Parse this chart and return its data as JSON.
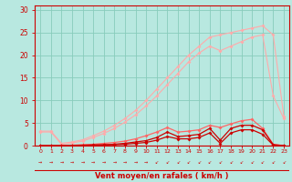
{
  "bg_color": "#b8e8e0",
  "grid_color": "#88ccbb",
  "x_values": [
    0,
    1,
    2,
    3,
    4,
    5,
    6,
    7,
    8,
    9,
    10,
    11,
    12,
    13,
    14,
    15,
    16,
    17,
    18,
    19,
    20,
    21,
    22,
    23
  ],
  "xlabel": "Vent moyen/en rafales ( km/h )",
  "xlabel_color": "#cc0000",
  "tick_color": "#cc0000",
  "spine_color": "#cc0000",
  "line_light1_color": "#ffaaaa",
  "line_light2_color": "#ffaaaa",
  "line_mid_color": "#ff6666",
  "line_dark1_color": "#cc0000",
  "line_dark2_color": "#cc0000",
  "line_light1": [
    3.2,
    3.2,
    0.5,
    0.8,
    1.3,
    2.2,
    3.2,
    4.5,
    6.0,
    7.8,
    10.0,
    12.5,
    15.0,
    17.5,
    20.0,
    22.0,
    24.0,
    24.5,
    25.0,
    25.5,
    26.0,
    26.5,
    24.5,
    6.5
  ],
  "line_light2": [
    3.0,
    3.0,
    0.3,
    0.6,
    1.0,
    1.8,
    2.7,
    3.8,
    5.2,
    6.8,
    8.8,
    11.0,
    13.5,
    16.0,
    18.5,
    20.5,
    22.0,
    21.0,
    22.0,
    23.0,
    24.0,
    24.5,
    11.0,
    6.0
  ],
  "line_mid": [
    0.0,
    0.0,
    0.0,
    0.1,
    0.2,
    0.3,
    0.5,
    0.7,
    1.0,
    1.5,
    2.2,
    3.0,
    4.0,
    3.0,
    3.2,
    3.5,
    4.5,
    4.0,
    4.8,
    5.5,
    5.8,
    3.8,
    0.3,
    0.0
  ],
  "line_dark1": [
    0.0,
    0.0,
    0.0,
    0.05,
    0.1,
    0.15,
    0.2,
    0.3,
    0.5,
    0.8,
    1.1,
    1.8,
    3.0,
    2.0,
    2.2,
    2.5,
    3.8,
    1.2,
    3.8,
    4.5,
    4.5,
    3.5,
    0.2,
    0.0
  ],
  "line_dark2": [
    0.0,
    0.0,
    0.0,
    0.05,
    0.05,
    0.1,
    0.15,
    0.2,
    0.3,
    0.5,
    0.7,
    1.2,
    2.0,
    1.5,
    1.5,
    1.8,
    2.8,
    0.5,
    2.8,
    3.5,
    3.5,
    2.5,
    0.1,
    0.0
  ],
  "ylim": [
    0,
    31
  ],
  "yticks": [
    0,
    5,
    10,
    15,
    20,
    25,
    30
  ],
  "xlim": [
    -0.5,
    23.5
  ]
}
